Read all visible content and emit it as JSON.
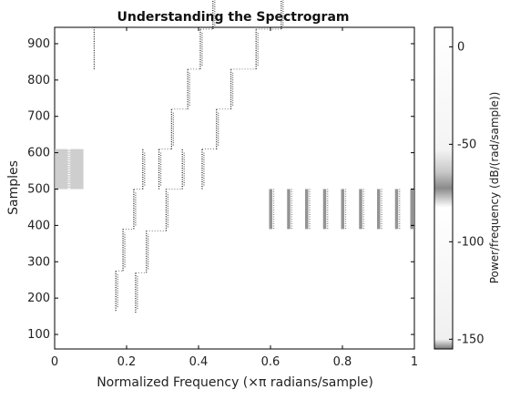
{
  "chart_data": {
    "type": "heatmap",
    "title": "Understanding the Spectrogram",
    "xlabel": "Normalized Frequency (×π radians/sample)",
    "ylabel": "Samples",
    "xlim": [
      0,
      1
    ],
    "ylim": [
      60,
      945
    ],
    "xticks": [
      0,
      0.2,
      0.4,
      0.6,
      0.8,
      1
    ],
    "xtick_labels": [
      "0",
      "0.2",
      "0.4",
      "0.6",
      "0.8",
      "1"
    ],
    "yticks": [
      100,
      200,
      300,
      400,
      500,
      600,
      700,
      800,
      900
    ],
    "ytick_labels": [
      "100",
      "200",
      "300",
      "400",
      "500",
      "600",
      "700",
      "800",
      "900"
    ],
    "colorbar": {
      "label": "Power/frequency (dB/(rad/sample))",
      "range": [
        -155,
        10
      ],
      "ticks": [
        0,
        -50,
        -100,
        -150
      ],
      "tick_labels": [
        "0",
        "-50",
        "-100",
        "-150"
      ]
    },
    "grid": false,
    "colormap": "bone-inverted",
    "components": [
      {
        "name": "chirp-1",
        "points": [
          [
            0.17,
            165
          ],
          [
            0.19,
            275
          ],
          [
            0.22,
            390
          ],
          [
            0.245,
            500
          ]
        ]
      },
      {
        "name": "chirp-2",
        "points": [
          [
            0.225,
            160
          ],
          [
            0.255,
            270
          ],
          [
            0.31,
            385
          ],
          [
            0.355,
            500
          ]
        ]
      },
      {
        "name": "chirp-3",
        "points": [
          [
            0.29,
            500
          ],
          [
            0.325,
            610
          ],
          [
            0.37,
            720
          ],
          [
            0.405,
            830
          ],
          [
            0.44,
            940
          ]
        ]
      },
      {
        "name": "chirp-4",
        "points": [
          [
            0.41,
            500
          ],
          [
            0.45,
            610
          ],
          [
            0.49,
            720
          ],
          [
            0.56,
            830
          ],
          [
            0.63,
            940
          ]
        ]
      },
      {
        "name": "low-band",
        "x0": 0.0,
        "x1": 0.08,
        "y0": 500,
        "y1": 610
      },
      {
        "name": "tone-0.11",
        "x": 0.11,
        "y0": 830,
        "y1": 945
      },
      {
        "name": "band-comb",
        "x": [
          0.6,
          0.65,
          0.7,
          0.75,
          0.8,
          0.85,
          0.9,
          0.95,
          1.0
        ],
        "y0": 390,
        "y1": 500
      }
    ]
  }
}
